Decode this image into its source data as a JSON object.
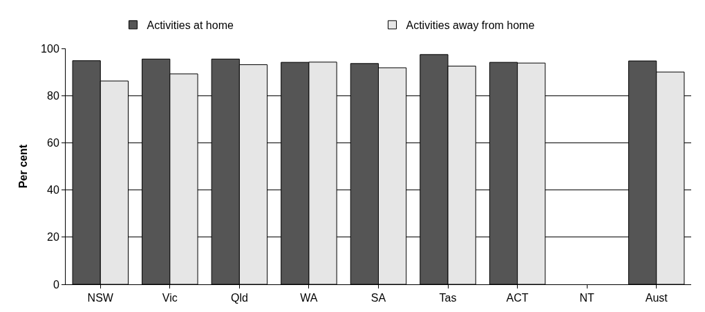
{
  "chart_data": {
    "type": "bar",
    "ylabel": "Per cent",
    "categories": [
      "NSW",
      "Vic",
      "Qld",
      "WA",
      "SA",
      "Tas",
      "ACT",
      "NT",
      "Aust"
    ],
    "series": [
      {
        "name": "Activities at home",
        "color": "#555555",
        "values": [
          94.8,
          95.5,
          95.5,
          94.1,
          93.6,
          97.4,
          94.1,
          null,
          94.7
        ]
      },
      {
        "name": "Activities away from home",
        "color": "#e6e6e6",
        "values": [
          86.2,
          89.2,
          93.1,
          94.2,
          91.8,
          92.5,
          93.8,
          null,
          90.0
        ]
      }
    ],
    "ylim": [
      0,
      100
    ],
    "yticks": [
      0,
      20,
      40,
      60,
      80,
      100
    ],
    "grid": "y",
    "legend": "top"
  }
}
